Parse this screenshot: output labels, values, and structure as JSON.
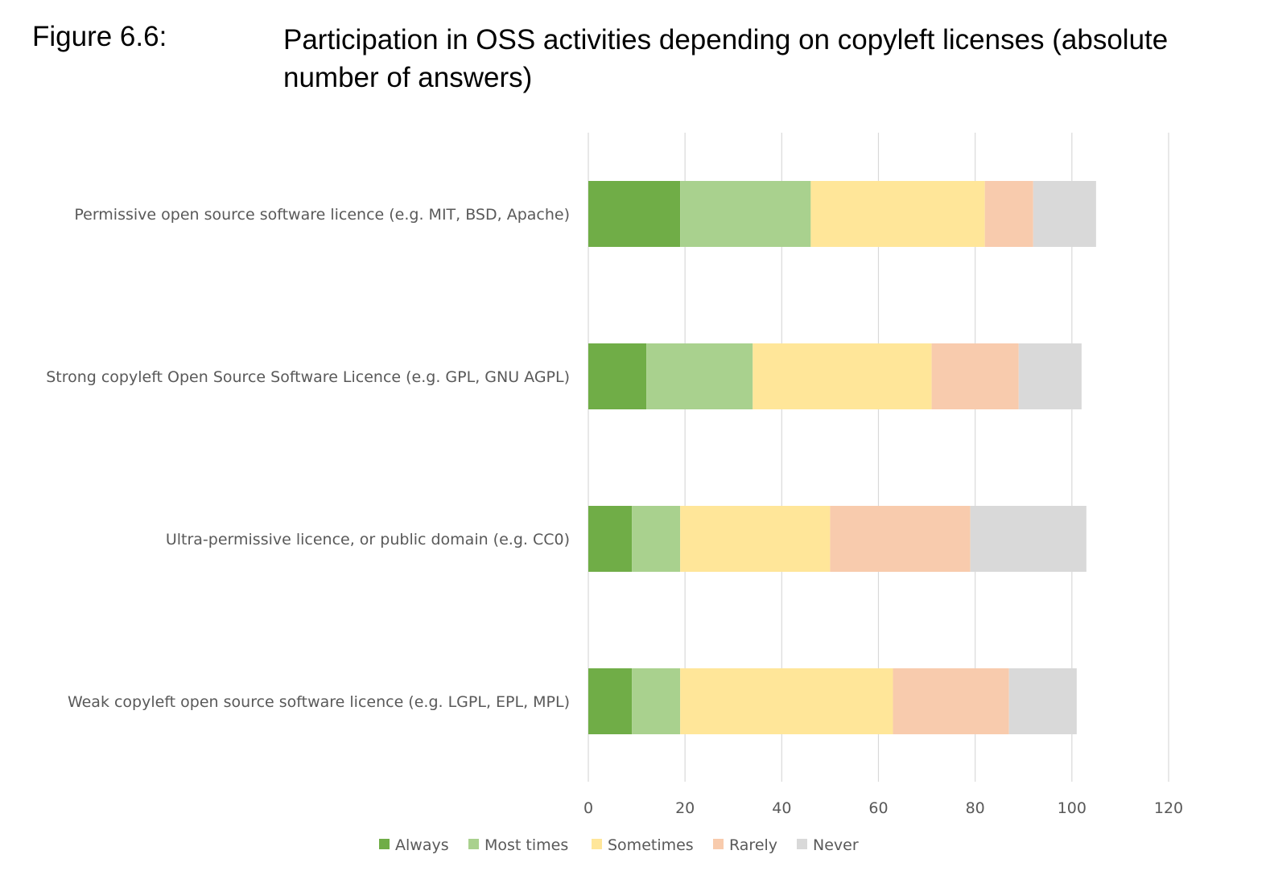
{
  "figure": {
    "label": "Figure 6.6:",
    "title": "Participation in OSS activities depending on copyleft licenses (absolute number of answers)"
  },
  "chart_data": {
    "type": "bar",
    "orientation": "horizontal",
    "stacked": true,
    "title": "Participation in OSS activities depending on copyleft licenses (absolute number of answers)",
    "categories": [
      "Permissive open source software licence (e.g. MIT, BSD, Apache)",
      "Strong copyleft Open Source Software Licence (e.g. GPL, GNU AGPL)",
      "Ultra-permissive licence, or public domain (e.g. CC0)",
      "Weak copyleft open source software licence (e.g. LGPL, EPL, MPL)"
    ],
    "series": [
      {
        "name": "Always",
        "color": "#70AD47",
        "values": [
          19,
          12,
          9,
          9
        ]
      },
      {
        "name": "Most times",
        "color": "#A9D18E",
        "values": [
          27,
          22,
          10,
          10
        ]
      },
      {
        "name": "Sometimes",
        "color": "#FFE699",
        "values": [
          36,
          37,
          31,
          44
        ]
      },
      {
        "name": "Rarely",
        "color": "#F8CBAD",
        "values": [
          10,
          18,
          29,
          24
        ]
      },
      {
        "name": "Never",
        "color": "#D9D9D9",
        "values": [
          13,
          13,
          24,
          14
        ]
      }
    ],
    "xlim": [
      0,
      120
    ],
    "xticks": [
      "0",
      "20",
      "40",
      "60",
      "80",
      "100",
      "120"
    ],
    "xlabel": "",
    "ylabel": "",
    "grid": "vertical",
    "legend": "bottom"
  }
}
